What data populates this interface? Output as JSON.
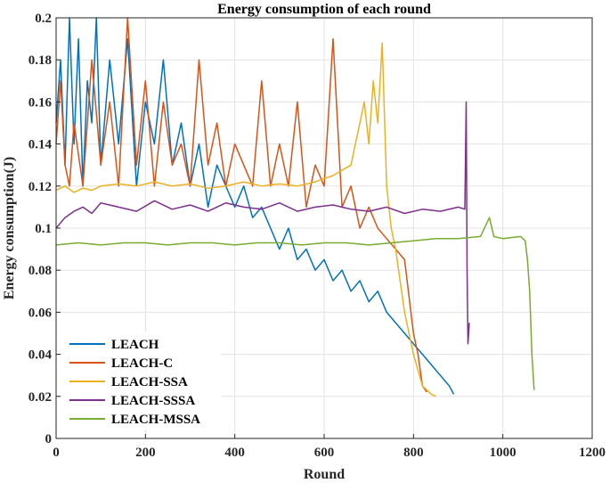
{
  "chart_data": {
    "type": "line",
    "title": "Energy consumption of each round",
    "xlabel": "Round",
    "ylabel": "Energy consumption(J)",
    "xlim": [
      0,
      1200
    ],
    "ylim": [
      0,
      0.2
    ],
    "xticks": [
      0,
      200,
      400,
      600,
      800,
      1000,
      1200
    ],
    "xtick_labels": [
      "0",
      "200",
      "400",
      "600",
      "800",
      "1000",
      "1200"
    ],
    "yticks": [
      0,
      0.02,
      0.04,
      0.06,
      0.08,
      0.1,
      0.12,
      0.14,
      0.16,
      0.18,
      0.2
    ],
    "ytick_labels": [
      "0",
      "0.02",
      "0.04",
      "0.06",
      "0.08",
      "0.1",
      "0.12",
      "0.14",
      "0.16",
      "0.18",
      "0.2"
    ],
    "grid": true,
    "legend_position": "bottom-left",
    "series": [
      {
        "name": "LEACH",
        "color": "#0072BD",
        "x": [
          0,
          10,
          20,
          30,
          40,
          50,
          60,
          70,
          80,
          90,
          100,
          120,
          140,
          160,
          180,
          200,
          220,
          240,
          260,
          280,
          300,
          320,
          340,
          360,
          380,
          400,
          420,
          440,
          460,
          480,
          500,
          520,
          540,
          560,
          580,
          600,
          620,
          640,
          660,
          680,
          700,
          720,
          740,
          760,
          780,
          800,
          820,
          840,
          860,
          880,
          890
        ],
        "y": [
          0.15,
          0.18,
          0.13,
          0.2,
          0.14,
          0.19,
          0.12,
          0.17,
          0.15,
          0.2,
          0.13,
          0.18,
          0.14,
          0.19,
          0.12,
          0.16,
          0.14,
          0.18,
          0.13,
          0.15,
          0.12,
          0.14,
          0.11,
          0.13,
          0.12,
          0.11,
          0.12,
          0.105,
          0.11,
          0.1,
          0.09,
          0.1,
          0.085,
          0.09,
          0.08,
          0.085,
          0.075,
          0.08,
          0.07,
          0.075,
          0.065,
          0.07,
          0.06,
          0.055,
          0.05,
          0.045,
          0.04,
          0.035,
          0.03,
          0.025,
          0.021
        ]
      },
      {
        "name": "LEACH-C",
        "color": "#D95319",
        "x": [
          0,
          10,
          20,
          30,
          40,
          60,
          80,
          100,
          120,
          140,
          160,
          180,
          200,
          220,
          240,
          260,
          280,
          300,
          320,
          340,
          360,
          380,
          400,
          420,
          440,
          460,
          480,
          500,
          520,
          540,
          560,
          580,
          600,
          620,
          640,
          660,
          680,
          700,
          720,
          740,
          760,
          780,
          800,
          810,
          820,
          830
        ],
        "y": [
          0.14,
          0.17,
          0.13,
          0.12,
          0.15,
          0.12,
          0.18,
          0.13,
          0.16,
          0.12,
          0.2,
          0.13,
          0.17,
          0.12,
          0.16,
          0.13,
          0.14,
          0.12,
          0.18,
          0.13,
          0.15,
          0.12,
          0.14,
          0.13,
          0.12,
          0.17,
          0.12,
          0.14,
          0.12,
          0.16,
          0.11,
          0.13,
          0.12,
          0.19,
          0.11,
          0.12,
          0.1,
          0.11,
          0.1,
          0.095,
          0.09,
          0.085,
          0.05,
          0.04,
          0.025,
          0.022
        ]
      },
      {
        "name": "LEACH-SSA",
        "color": "#EDB120",
        "x": [
          0,
          20,
          40,
          60,
          80,
          100,
          140,
          180,
          220,
          260,
          300,
          340,
          380,
          420,
          460,
          500,
          540,
          580,
          620,
          660,
          690,
          700,
          710,
          720,
          730,
          740,
          750,
          760,
          780,
          800,
          820,
          840,
          850
        ],
        "y": [
          0.118,
          0.12,
          0.117,
          0.119,
          0.118,
          0.12,
          0.121,
          0.12,
          0.122,
          0.12,
          0.121,
          0.119,
          0.12,
          0.122,
          0.12,
          0.121,
          0.12,
          0.122,
          0.125,
          0.13,
          0.16,
          0.14,
          0.17,
          0.15,
          0.188,
          0.12,
          0.1,
          0.09,
          0.06,
          0.04,
          0.025,
          0.021,
          0.02
        ]
      },
      {
        "name": "LEACH-SSSA",
        "color": "#7E2F8E",
        "x": [
          0,
          20,
          40,
          60,
          80,
          100,
          140,
          180,
          220,
          260,
          300,
          340,
          380,
          420,
          460,
          500,
          540,
          580,
          620,
          660,
          700,
          740,
          780,
          820,
          860,
          900,
          915,
          918,
          920,
          922,
          925
        ],
        "y": [
          0.1,
          0.105,
          0.108,
          0.11,
          0.107,
          0.112,
          0.11,
          0.108,
          0.113,
          0.109,
          0.111,
          0.108,
          0.112,
          0.11,
          0.109,
          0.112,
          0.108,
          0.11,
          0.111,
          0.109,
          0.108,
          0.11,
          0.107,
          0.109,
          0.108,
          0.11,
          0.109,
          0.16,
          0.08,
          0.045,
          0.055
        ]
      },
      {
        "name": "LEACH-MSSA",
        "color": "#77AC30",
        "x": [
          0,
          50,
          100,
          150,
          200,
          250,
          300,
          350,
          400,
          450,
          500,
          550,
          600,
          650,
          700,
          750,
          800,
          850,
          900,
          950,
          970,
          980,
          1000,
          1040,
          1050,
          1055,
          1060,
          1065,
          1070
        ],
        "y": [
          0.092,
          0.093,
          0.092,
          0.093,
          0.093,
          0.092,
          0.093,
          0.093,
          0.092,
          0.093,
          0.093,
          0.092,
          0.093,
          0.093,
          0.092,
          0.093,
          0.094,
          0.095,
          0.095,
          0.096,
          0.105,
          0.096,
          0.095,
          0.096,
          0.094,
          0.085,
          0.07,
          0.04,
          0.023
        ]
      }
    ]
  }
}
